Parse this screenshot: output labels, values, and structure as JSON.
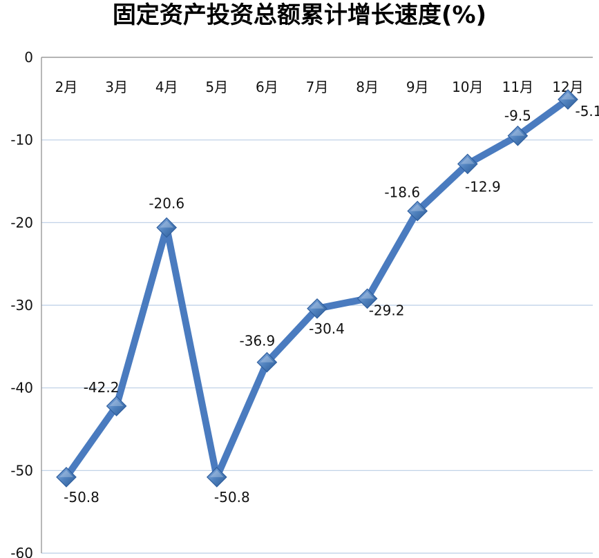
{
  "chart_data": {
    "type": "line",
    "title": "固定资产投资总额累计增长速度(%)",
    "categories": [
      "2月",
      "3月",
      "4月",
      "5月",
      "6月",
      "7月",
      "8月",
      "9月",
      "10月",
      "11月",
      "12月"
    ],
    "series": [
      {
        "values": [
          -50.8,
          -42.2,
          -20.6,
          -50.8,
          -36.9,
          -30.4,
          -29.2,
          -18.6,
          -12.9,
          -9.5,
          -5.1
        ]
      }
    ],
    "data_labels": [
      "-50.8",
      "-42.2",
      "-20.6",
      "-50.8",
      "-36.9",
      "-30.4",
      "-29.2",
      "-18.6",
      "-12.9",
      "-9.5",
      "-5.1"
    ],
    "ylim": [
      -60,
      0
    ],
    "yticks": [
      0,
      -10,
      -20,
      -30,
      -40,
      -50,
      -60
    ],
    "ytick_labels": [
      "0",
      "-10",
      "-20",
      "-30",
      "-40",
      "-50",
      "-60"
    ],
    "xlabel": "",
    "ylabel": "",
    "grid": true,
    "x_axis_position": "top",
    "line_color": "#4a7bbf",
    "marker_color": "#4f81bd",
    "marker": "diamond"
  }
}
